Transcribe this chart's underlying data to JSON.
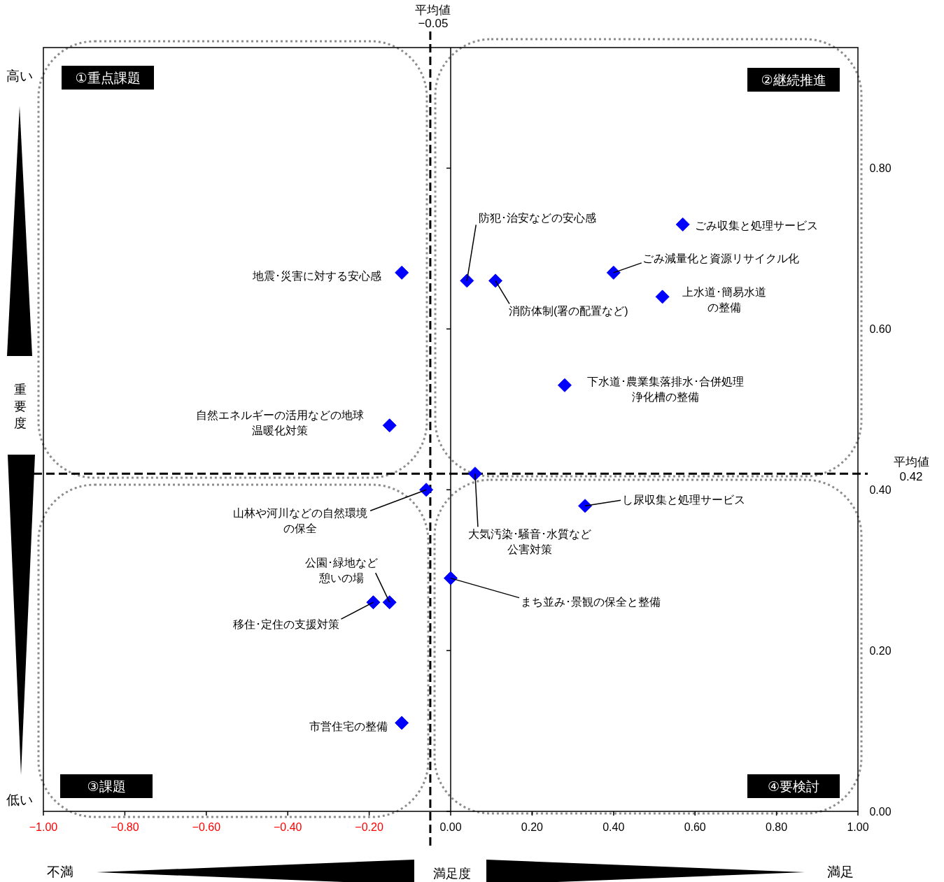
{
  "chart_data": {
    "type": "scatter",
    "xlabel": "満足度",
    "ylabel": "重要度",
    "x": [
      0.04,
      0.11,
      0.4,
      0.52,
      0.57,
      -0.12,
      0.28,
      -0.15,
      -0.06,
      0.06,
      0.33,
      0.0,
      -0.15,
      -0.19,
      -0.12
    ],
    "series": [
      {
        "color": "#0000ff",
        "values": [
          0.66,
          0.66,
          0.67,
          0.64,
          0.73,
          0.67,
          0.53,
          0.48,
          0.4,
          0.42,
          0.38,
          0.29,
          0.26,
          0.26,
          0.11
        ]
      }
    ],
    "marker": "diamond",
    "xlim": [
      -1,
      1
    ],
    "xticks": [
      {
        "value": -1,
        "label": "−1.00"
      },
      {
        "value": -0.8,
        "label": "−0.80"
      },
      {
        "value": -0.6,
        "label": "−0.60"
      },
      {
        "value": -0.4,
        "label": "−0.40"
      },
      {
        "value": -0.2,
        "label": "−0.20"
      },
      {
        "value": 0,
        "label": "0.00"
      },
      {
        "value": 0.2,
        "label": "0.20"
      },
      {
        "value": 0.4,
        "label": "0.40"
      },
      {
        "value": 0.6,
        "label": "0.60"
      },
      {
        "value": 0.8,
        "label": "0.80"
      },
      {
        "value": 1,
        "label": "1.00"
      }
    ],
    "ylim": [
      0,
      0.95
    ],
    "yticks": [
      {
        "value": 0,
        "label": "0.00"
      },
      {
        "value": 0.2,
        "label": "0.20"
      },
      {
        "value": 0.4,
        "label": "0.40"
      },
      {
        "value": 0.6,
        "label": "0.60"
      },
      {
        "value": 0.8,
        "label": "0.80"
      }
    ],
    "ref_lines": [
      {
        "axis": "x",
        "value": -0.05,
        "label": "平均値\n−0.05",
        "color": "#000000",
        "line_style": "dashed"
      },
      {
        "axis": "y",
        "value": 0.42,
        "label": "平均値\n0.42",
        "color": "#000000",
        "line_style": "dashed"
      }
    ],
    "annotations": [
      {
        "text": "防犯･治安などの安心感",
        "x": 0.04,
        "y": 0.66
      },
      {
        "text": "消防体制(署の配置など)",
        "x": 0.11,
        "y": 0.66
      },
      {
        "text": "ごみ減量化と資源リサイクル化",
        "x": 0.4,
        "y": 0.67
      },
      {
        "text": "上水道･簡易水道の整備",
        "x": 0.52,
        "y": 0.64
      },
      {
        "text": "ごみ収集と処理サービス",
        "x": 0.57,
        "y": 0.73
      },
      {
        "text": "地震･災害に対する安心感",
        "x": -0.12,
        "y": 0.67
      },
      {
        "text": "下水道･農業集落排水･合併処理浄化槽の整備",
        "x": 0.28,
        "y": 0.53
      },
      {
        "text": "自然エネルギーの活用などの地球温暖化対策",
        "x": -0.15,
        "y": 0.48
      },
      {
        "text": "山林や河川などの自然環境の保全",
        "x": -0.06,
        "y": 0.4
      },
      {
        "text": "大気汚染･騒音･水質など公害対策",
        "x": 0.06,
        "y": 0.42
      },
      {
        "text": "し尿収集と処理サービス",
        "x": 0.33,
        "y": 0.38
      },
      {
        "text": "まち並み･景観の保全と整備",
        "x": 0.0,
        "y": 0.29
      },
      {
        "text": "公園･緑地など憩いの場",
        "x": -0.15,
        "y": 0.26
      },
      {
        "text": "移住･定住の支援対策",
        "x": -0.19,
        "y": 0.26
      },
      {
        "text": "市営住宅の整備",
        "x": -0.12,
        "y": 0.11
      },
      "①重点課題",
      "②継続推進",
      "③課題",
      "④要検討",
      "高い",
      "低い",
      "不満",
      "満足"
    ]
  }
}
